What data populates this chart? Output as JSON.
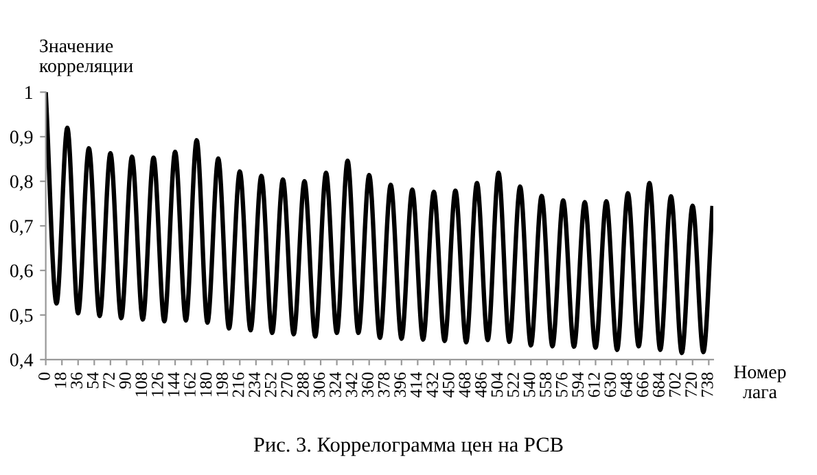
{
  "chart_data": {
    "type": "line",
    "xlabel": "Номер лага",
    "ylabel": "Значение\nкорреляции",
    "annotations": [
      "Рис. 3. Коррелограмма цен на РСВ"
    ],
    "x": [
      0,
      12,
      24,
      36,
      48,
      60,
      72,
      84,
      96,
      108,
      120,
      132,
      144,
      156,
      168,
      180,
      192,
      204,
      216,
      228,
      240,
      252,
      264,
      276,
      288,
      300,
      312,
      324,
      336,
      348,
      360,
      372,
      384,
      396,
      408,
      420,
      432,
      444,
      456,
      468,
      480,
      492,
      504,
      516,
      528,
      540,
      552,
      564,
      576,
      588,
      600,
      612,
      624,
      636,
      648,
      660,
      672,
      684,
      696,
      708,
      720,
      732,
      742
    ],
    "series": [
      {
        "color": "#000000",
        "values": [
          1,
          0.526,
          0.92,
          0.504,
          0.874,
          0.498,
          0.863,
          0.493,
          0.855,
          0.49,
          0.853,
          0.486,
          0.866,
          0.488,
          0.892,
          0.483,
          0.851,
          0.47,
          0.822,
          0.466,
          0.812,
          0.46,
          0.804,
          0.457,
          0.8,
          0.452,
          0.819,
          0.46,
          0.846,
          0.46,
          0.814,
          0.449,
          0.792,
          0.447,
          0.781,
          0.445,
          0.776,
          0.442,
          0.779,
          0.439,
          0.796,
          0.444,
          0.819,
          0.44,
          0.788,
          0.432,
          0.767,
          0.43,
          0.757,
          0.429,
          0.753,
          0.427,
          0.755,
          0.422,
          0.773,
          0.43,
          0.796,
          0.422,
          0.766,
          0.415,
          0.745,
          0.417,
          0.74
        ]
      }
    ],
    "xlim": [
      0,
      743
    ],
    "xticks": [
      0,
      18,
      36,
      54,
      72,
      90,
      108,
      126,
      144,
      162,
      180,
      198,
      216,
      234,
      252,
      270,
      288,
      306,
      324,
      342,
      360,
      378,
      396,
      414,
      432,
      450,
      468,
      486,
      504,
      522,
      540,
      558,
      576,
      594,
      612,
      630,
      648,
      666,
      684,
      702,
      720,
      738
    ],
    "ylim": [
      0.4,
      1
    ],
    "yticks": [
      {
        "value": 0.4,
        "label": "0,4"
      },
      {
        "value": 0.5,
        "label": "0,5"
      },
      {
        "value": 0.6,
        "label": "0,6"
      },
      {
        "value": 0.7,
        "label": "0,7"
      },
      {
        "value": 0.8,
        "label": "0,8"
      },
      {
        "value": 0.9,
        "label": "0,9"
      },
      {
        "value": 1,
        "label": "1"
      }
    ],
    "grid": false,
    "marker": "none",
    "line_style": "solid"
  }
}
